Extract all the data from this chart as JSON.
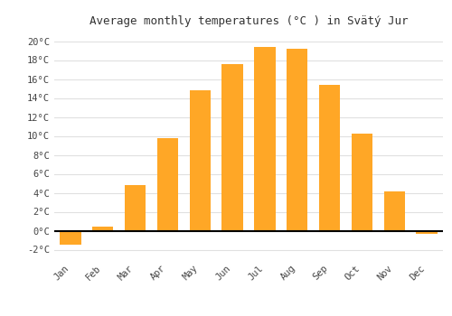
{
  "title": "Average monthly temperatures (°C ) in Svätý Jur",
  "months": [
    "Jan",
    "Feb",
    "Mar",
    "Apr",
    "May",
    "Jun",
    "Jul",
    "Aug",
    "Sep",
    "Oct",
    "Nov",
    "Dec"
  ],
  "values": [
    -1.5,
    0.4,
    4.8,
    9.8,
    14.8,
    17.6,
    19.4,
    19.2,
    15.4,
    10.2,
    4.1,
    -0.3
  ],
  "bar_color": "#FFA726",
  "ylim": [
    -3,
    21
  ],
  "yticks": [
    -2,
    0,
    2,
    4,
    6,
    8,
    10,
    12,
    14,
    16,
    18,
    20
  ],
  "background_color": "#ffffff",
  "plot_bg_color": "#ffffff",
  "grid_color": "#e0e0e0",
  "title_fontsize": 9,
  "tick_fontsize": 7.5
}
